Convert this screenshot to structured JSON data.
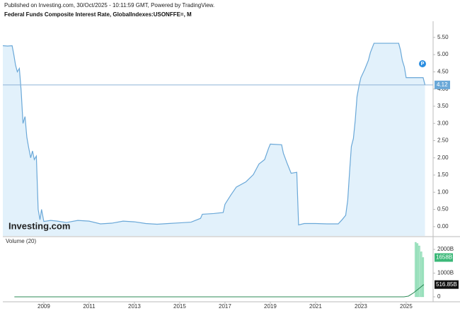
{
  "header": {
    "published": "Published on Investing.com, 30/Oct/2025 - 10:11:59 GMT, Powered by TradingView.",
    "watermark": "Investing.com",
    "badge": "P"
  },
  "chart_data": [
    {
      "type": "line",
      "title": "Federal Funds Composite Interest Rate, GlobalIndexes:USONFFE=, M",
      "color": "#6aa8d8",
      "fill": "#e2f1fb",
      "x": [
        2007.19,
        2007.4,
        2007.6,
        2007.67,
        2007.75,
        2007.83,
        2007.92,
        2008.0,
        2008.08,
        2008.17,
        2008.25,
        2008.33,
        2008.42,
        2008.5,
        2008.58,
        2008.67,
        2008.75,
        2008.83,
        2008.9,
        2009.0,
        2009.3,
        2009.6,
        2010.0,
        2010.5,
        2011.0,
        2011.5,
        2012.0,
        2012.5,
        2013.0,
        2013.5,
        2014.0,
        2014.5,
        2015.0,
        2015.5,
        2015.92,
        2016.0,
        2016.5,
        2016.92,
        2017.0,
        2017.25,
        2017.5,
        2017.92,
        2018.25,
        2018.5,
        2018.75,
        2018.92,
        2019.0,
        2019.5,
        2019.58,
        2019.75,
        2019.92,
        2020.17,
        2020.25,
        2020.5,
        2021.0,
        2021.5,
        2022.0,
        2022.17,
        2022.33,
        2022.42,
        2022.5,
        2022.58,
        2022.67,
        2022.75,
        2022.83,
        2022.92,
        2023.0,
        2023.17,
        2023.33,
        2023.42,
        2023.58,
        2024.67,
        2024.75,
        2024.83,
        2024.92,
        2025.0,
        2025.75,
        2025.83
      ],
      "values": [
        5.26,
        5.25,
        5.26,
        5.02,
        4.7,
        4.5,
        4.6,
        3.94,
        3.0,
        3.2,
        2.6,
        2.3,
        2.0,
        2.2,
        1.95,
        2.05,
        0.5,
        0.2,
        0.5,
        0.15,
        0.18,
        0.16,
        0.12,
        0.18,
        0.16,
        0.08,
        0.1,
        0.16,
        0.14,
        0.09,
        0.07,
        0.09,
        0.11,
        0.13,
        0.24,
        0.36,
        0.38,
        0.41,
        0.65,
        0.91,
        1.15,
        1.3,
        1.51,
        1.82,
        1.95,
        2.27,
        2.4,
        2.38,
        2.13,
        1.83,
        1.55,
        1.58,
        0.05,
        0.09,
        0.09,
        0.08,
        0.08,
        0.2,
        0.33,
        0.77,
        1.58,
        2.33,
        2.56,
        3.08,
        3.78,
        4.1,
        4.33,
        4.57,
        4.83,
        5.06,
        5.33,
        5.33,
        5.13,
        4.83,
        4.64,
        4.33,
        4.33,
        4.12
      ],
      "xlim": [
        2007.19,
        2026.19
      ],
      "xticks": [
        2009,
        2011,
        2013,
        2015,
        2017,
        2019,
        2021,
        2023,
        2025
      ],
      "ylim": [
        -0.27,
        5.97
      ],
      "yticks": [
        {
          "value": 0,
          "label": "0.00"
        },
        {
          "value": 0.5,
          "label": "0.50"
        },
        {
          "value": 1,
          "label": "1.00"
        },
        {
          "value": 1.5,
          "label": "1.50"
        },
        {
          "value": 2,
          "label": "2.00"
        },
        {
          "value": 2.5,
          "label": "2.50"
        },
        {
          "value": 3,
          "label": "3.00"
        },
        {
          "value": 3.5,
          "label": "3.50"
        },
        {
          "value": 4,
          "label": "4.00"
        },
        {
          "value": 4.5,
          "label": "4.50"
        },
        {
          "value": 5,
          "label": "5.00"
        },
        {
          "value": 5.5,
          "label": "5.50"
        }
      ]
    },
    {
      "type": "bar",
      "title": "Volume (20)",
      "color": "#a8e6c6",
      "edge": "#4cc48a",
      "x": [
        2025.42,
        2025.5,
        2025.58,
        2025.67,
        2025.75
      ],
      "values": [
        2300,
        2250,
        2150,
        1900,
        1658
      ],
      "value_labels": [
        null,
        null,
        null,
        null,
        "1658B"
      ],
      "ma_color": "#2e8b57",
      "ma_x": [
        2007.7,
        2024.9,
        2025.1,
        2025.3,
        2025.5,
        2025.78
      ],
      "ma_values": [
        0,
        0,
        30,
        150,
        300,
        516.85
      ],
      "ma_value_labels": [
        null,
        null,
        null,
        null,
        null,
        "516.85B"
      ],
      "xlim": [
        2007.19,
        2026.19
      ],
      "ylim": [
        -180,
        2480
      ],
      "yticks": [
        0,
        {
          "value": 1000,
          "label": "1000B"
        },
        {
          "value": 2000,
          "label": "2000B"
        }
      ]
    }
  ]
}
